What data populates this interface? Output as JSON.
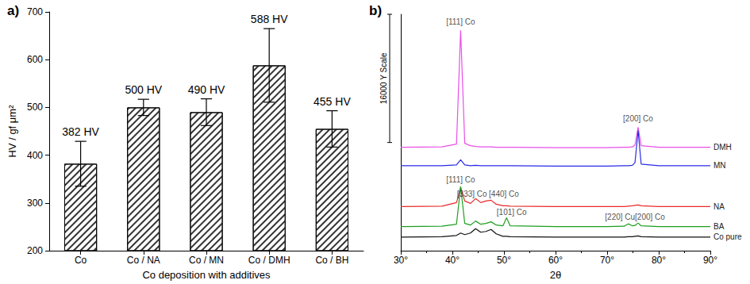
{
  "chart_data": [
    {
      "type": "bar",
      "title": "a)",
      "categories": [
        "Co",
        "Co / NA",
        "Co / MN",
        "Co / DMH",
        "Co / BH"
      ],
      "values": [
        382,
        500,
        490,
        588,
        455
      ],
      "value_labels": [
        "382 HV",
        "500 HV",
        "490 HV",
        "588 HV",
        "455 HV"
      ],
      "errors": [
        47,
        17,
        28,
        77,
        38
      ],
      "color": "#ffffff",
      "x_label": "Co deposition with additives",
      "y_label": "HV / gf μm²",
      "ylim": [
        200,
        700
      ],
      "yticks": [
        200,
        300,
        400,
        500,
        600,
        700
      ],
      "grid": false,
      "data_labels": true
    },
    {
      "type": "line",
      "title": "b)",
      "x_label": "2θ",
      "x": [
        30,
        38,
        40.8,
        41.6,
        42.4,
        43.5,
        44.5,
        45.5,
        46.5,
        47.5,
        48.5,
        49.8,
        50.5,
        51.2,
        60,
        70,
        73.3,
        74.1,
        74.9,
        75.4,
        76,
        76.6,
        80,
        90
      ],
      "series": [
        {
          "name": "DMH",
          "color": "#e84fe8",
          "values": [
            12900,
            12950,
            13300,
            27500,
            13400,
            13100,
            13000,
            12950,
            12950,
            12950,
            12900,
            12900,
            12900,
            12900,
            12850,
            12850,
            12900,
            12900,
            12950,
            13200,
            15400,
            13100,
            12900,
            12900
          ]
        },
        {
          "name": "MN",
          "color": "#2a2ae6",
          "values": [
            10600,
            10600,
            10700,
            11350,
            10700,
            10600,
            10650,
            10600,
            10600,
            10600,
            10600,
            10600,
            10600,
            10600,
            10550,
            10550,
            10600,
            10600,
            10650,
            11000,
            15000,
            10800,
            10600,
            10600
          ]
        },
        {
          "name": "NA",
          "color": "#e82a2a",
          "values": [
            5500,
            5550,
            6000,
            7900,
            6200,
            5900,
            6500,
            6000,
            6200,
            6300,
            5800,
            5600,
            5600,
            5550,
            5500,
            5500,
            5500,
            5550,
            5600,
            5650,
            5700,
            5600,
            5500,
            5500
          ]
        },
        {
          "name": "BA",
          "color": "#1e9e1e",
          "values": [
            3000,
            3050,
            3300,
            8000,
            3400,
            3200,
            3700,
            3300,
            3400,
            3600,
            3200,
            3100,
            4100,
            3100,
            3000,
            3000,
            3050,
            3350,
            3100,
            3150,
            3450,
            3100,
            3000,
            3000
          ]
        },
        {
          "name": "Co pure",
          "color": "#111111",
          "values": [
            1700,
            1750,
            1900,
            2200,
            2000,
            2200,
            2750,
            2300,
            2400,
            2650,
            2100,
            1800,
            1800,
            1750,
            1700,
            1700,
            1700,
            1750,
            1750,
            1800,
            1850,
            1750,
            1700,
            1700
          ]
        }
      ],
      "xlim": [
        30,
        90
      ],
      "xticks": [
        {
          "value": 30,
          "label": "30°"
        },
        {
          "value": 40,
          "label": "40°"
        },
        {
          "value": 50,
          "label": "50°"
        },
        {
          "value": 60,
          "label": "60°"
        },
        {
          "value": 70,
          "label": "70°"
        },
        {
          "value": 80,
          "label": "80°"
        },
        {
          "value": 90,
          "label": "90°"
        }
      ],
      "ylim": [
        0,
        29500
      ],
      "tick_labels": "x",
      "grid": false,
      "annotations": [
        {
          "text": "[111] Co",
          "x": 41.6,
          "y": 28600
        },
        {
          "text": "[200] Co",
          "x": 76,
          "y": 16500
        },
        {
          "text": "[111] Co",
          "x": 41.6,
          "y": 8900
        },
        {
          "text": "[333] Co",
          "x": 43.8,
          "y": 7100
        },
        {
          "text": "[440] Co",
          "x": 50.0,
          "y": 7100
        },
        {
          "text": "[101] Co",
          "x": 51.5,
          "y": 4850
        },
        {
          "text": "[220] Cu",
          "x": 72.5,
          "y": 4200
        },
        {
          "text": "[200] Co",
          "x": 78.3,
          "y": 4200
        }
      ],
      "scale_bar": {
        "value": 16000,
        "label": "16000 Y Scale"
      }
    }
  ]
}
